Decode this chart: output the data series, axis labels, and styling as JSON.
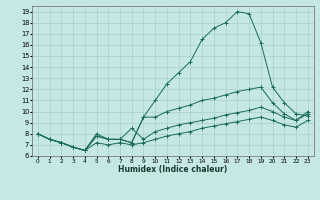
{
  "xlabel": "Humidex (Indice chaleur)",
  "bg_color": "#c5e8e5",
  "grid_color": "#afd4d0",
  "line_color": "#1a6b5a",
  "xlim": [
    -0.5,
    23.5
  ],
  "ylim": [
    6,
    19.5
  ],
  "xtick_labels": [
    "0",
    "1",
    "2",
    "3",
    "4",
    "5",
    "6",
    "7",
    "8",
    "9",
    "10",
    "11",
    "12",
    "13",
    "14",
    "15",
    "16",
    "17",
    "18",
    "19",
    "20",
    "21",
    "22",
    "23"
  ],
  "ytick_labels": [
    "6",
    "7",
    "8",
    "9",
    "10",
    "11",
    "12",
    "13",
    "14",
    "15",
    "16",
    "17",
    "18",
    "19"
  ],
  "ytick_vals": [
    6,
    7,
    8,
    9,
    10,
    11,
    12,
    13,
    14,
    15,
    16,
    17,
    18,
    19
  ],
  "xtick_vals": [
    0,
    1,
    2,
    3,
    4,
    5,
    6,
    7,
    8,
    9,
    10,
    11,
    12,
    13,
    14,
    15,
    16,
    17,
    18,
    19,
    20,
    21,
    22,
    23
  ],
  "line1_x": [
    0,
    1,
    2,
    3,
    4,
    5,
    6,
    7,
    8,
    9,
    10,
    11,
    12,
    13,
    14,
    15,
    16,
    17,
    18,
    19,
    20,
    21,
    22,
    23
  ],
  "line1_y": [
    8.0,
    7.5,
    7.2,
    6.8,
    6.5,
    7.8,
    7.5,
    7.5,
    7.2,
    9.5,
    11.0,
    12.5,
    13.5,
    14.5,
    16.5,
    17.5,
    18.0,
    19.0,
    18.8,
    16.2,
    12.2,
    10.8,
    9.8,
    9.6
  ],
  "line2_x": [
    0,
    1,
    2,
    3,
    4,
    5,
    6,
    7,
    8,
    9,
    10,
    11,
    12,
    13,
    14,
    15,
    16,
    17,
    18,
    19,
    20,
    21,
    22,
    23
  ],
  "line2_y": [
    8.0,
    7.5,
    7.2,
    6.8,
    6.5,
    7.8,
    7.5,
    7.5,
    7.2,
    9.5,
    9.5,
    10.0,
    10.3,
    10.6,
    11.0,
    11.2,
    11.5,
    11.8,
    12.0,
    12.2,
    10.8,
    9.8,
    9.2,
    10.0
  ],
  "line3_x": [
    0,
    1,
    2,
    3,
    4,
    5,
    6,
    7,
    8,
    9,
    10,
    11,
    12,
    13,
    14,
    15,
    16,
    17,
    18,
    19,
    20,
    21,
    22,
    23
  ],
  "line3_y": [
    8.0,
    7.5,
    7.2,
    6.8,
    6.5,
    8.0,
    7.5,
    7.5,
    8.5,
    7.5,
    8.2,
    8.5,
    8.8,
    9.0,
    9.2,
    9.4,
    9.7,
    9.9,
    10.1,
    10.4,
    10.0,
    9.5,
    9.2,
    9.8
  ],
  "line4_x": [
    0,
    1,
    2,
    3,
    4,
    5,
    6,
    7,
    8,
    9,
    10,
    11,
    12,
    13,
    14,
    15,
    16,
    17,
    18,
    19,
    20,
    21,
    22,
    23
  ],
  "line4_y": [
    8.0,
    7.5,
    7.2,
    6.8,
    6.5,
    7.2,
    7.0,
    7.2,
    7.0,
    7.2,
    7.5,
    7.8,
    8.0,
    8.2,
    8.5,
    8.7,
    8.9,
    9.1,
    9.3,
    9.5,
    9.2,
    8.8,
    8.6,
    9.2
  ]
}
